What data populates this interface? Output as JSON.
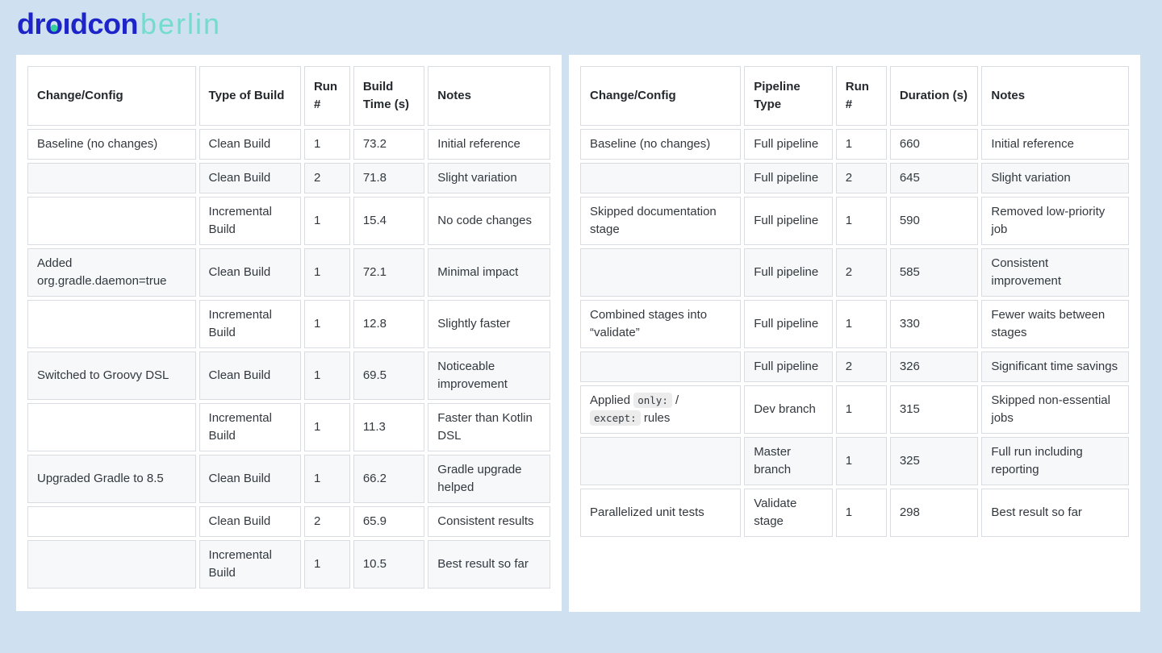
{
  "page": {
    "background_color": "#cfe1f0",
    "panel_color": "#ffffff",
    "row_shade_color": "#f6f8fa",
    "border_color": "#d9dde2"
  },
  "logo": {
    "part1": "dr",
    "part2": "o",
    "part3": "ıdcon",
    "secondary": "berlin",
    "primary_color": "#1d24c8",
    "secondary_color": "#74dccd",
    "dot_color": "#35d09b"
  },
  "left_table": {
    "headers": [
      "Change/Config",
      "Type of Build",
      "Run #",
      "Build Time (s)",
      "Notes"
    ],
    "rows": [
      [
        "Baseline (no changes)",
        "Clean Build",
        "1",
        "73.2",
        "Initial reference"
      ],
      [
        "",
        "Clean Build",
        "2",
        "71.8",
        "Slight variation"
      ],
      [
        "",
        "Incremental Build",
        "1",
        "15.4",
        "No code changes"
      ],
      [
        "Added org.gradle.daemon=true",
        "Clean Build",
        "1",
        "72.1",
        "Minimal impact"
      ],
      [
        "",
        "Incremental Build",
        "1",
        "12.8",
        "Slightly faster"
      ],
      [
        "Switched to Groovy DSL",
        "Clean Build",
        "1",
        "69.5",
        "Noticeable improvement"
      ],
      [
        "",
        "Incremental Build",
        "1",
        "11.3",
        "Faster than Kotlin DSL"
      ],
      [
        "Upgraded Gradle to 8.5",
        "Clean Build",
        "1",
        "66.2",
        "Gradle upgrade helped"
      ],
      [
        "",
        "Clean Build",
        "2",
        "65.9",
        "Consistent results"
      ],
      [
        "",
        "Incremental Build",
        "1",
        "10.5",
        "Best result so far"
      ]
    ]
  },
  "right_table": {
    "headers": [
      "Change/Config",
      "Pipeline Type",
      "Run #",
      "Duration (s)",
      "Notes"
    ],
    "rows": [
      [
        "Baseline (no changes)",
        "Full pipeline",
        "1",
        "660",
        "Initial reference"
      ],
      [
        "",
        "Full pipeline",
        "2",
        "645",
        "Slight variation"
      ],
      [
        "Skipped documentation stage",
        "Full pipeline",
        "1",
        "590",
        "Removed low-priority job"
      ],
      [
        "",
        "Full pipeline",
        "2",
        "585",
        "Consistent improvement"
      ],
      [
        "Combined stages into “validate”",
        "Full pipeline",
        "1",
        "330",
        "Fewer waits between stages"
      ],
      [
        "",
        "Full pipeline",
        "2",
        "326",
        "Significant time savings"
      ],
      [
        [
          {
            "text": "Applied "
          },
          {
            "code": "only:"
          },
          {
            "text": " / "
          },
          {
            "code": "except:"
          },
          {
            "text": " rules"
          }
        ],
        "Dev branch",
        "1",
        "315",
        "Skipped non-essential jobs"
      ],
      [
        "",
        "Master branch",
        "1",
        "325",
        "Full run including reporting"
      ],
      [
        "Parallelized unit tests",
        "Validate stage",
        "1",
        "298",
        "Best result so far"
      ]
    ]
  }
}
